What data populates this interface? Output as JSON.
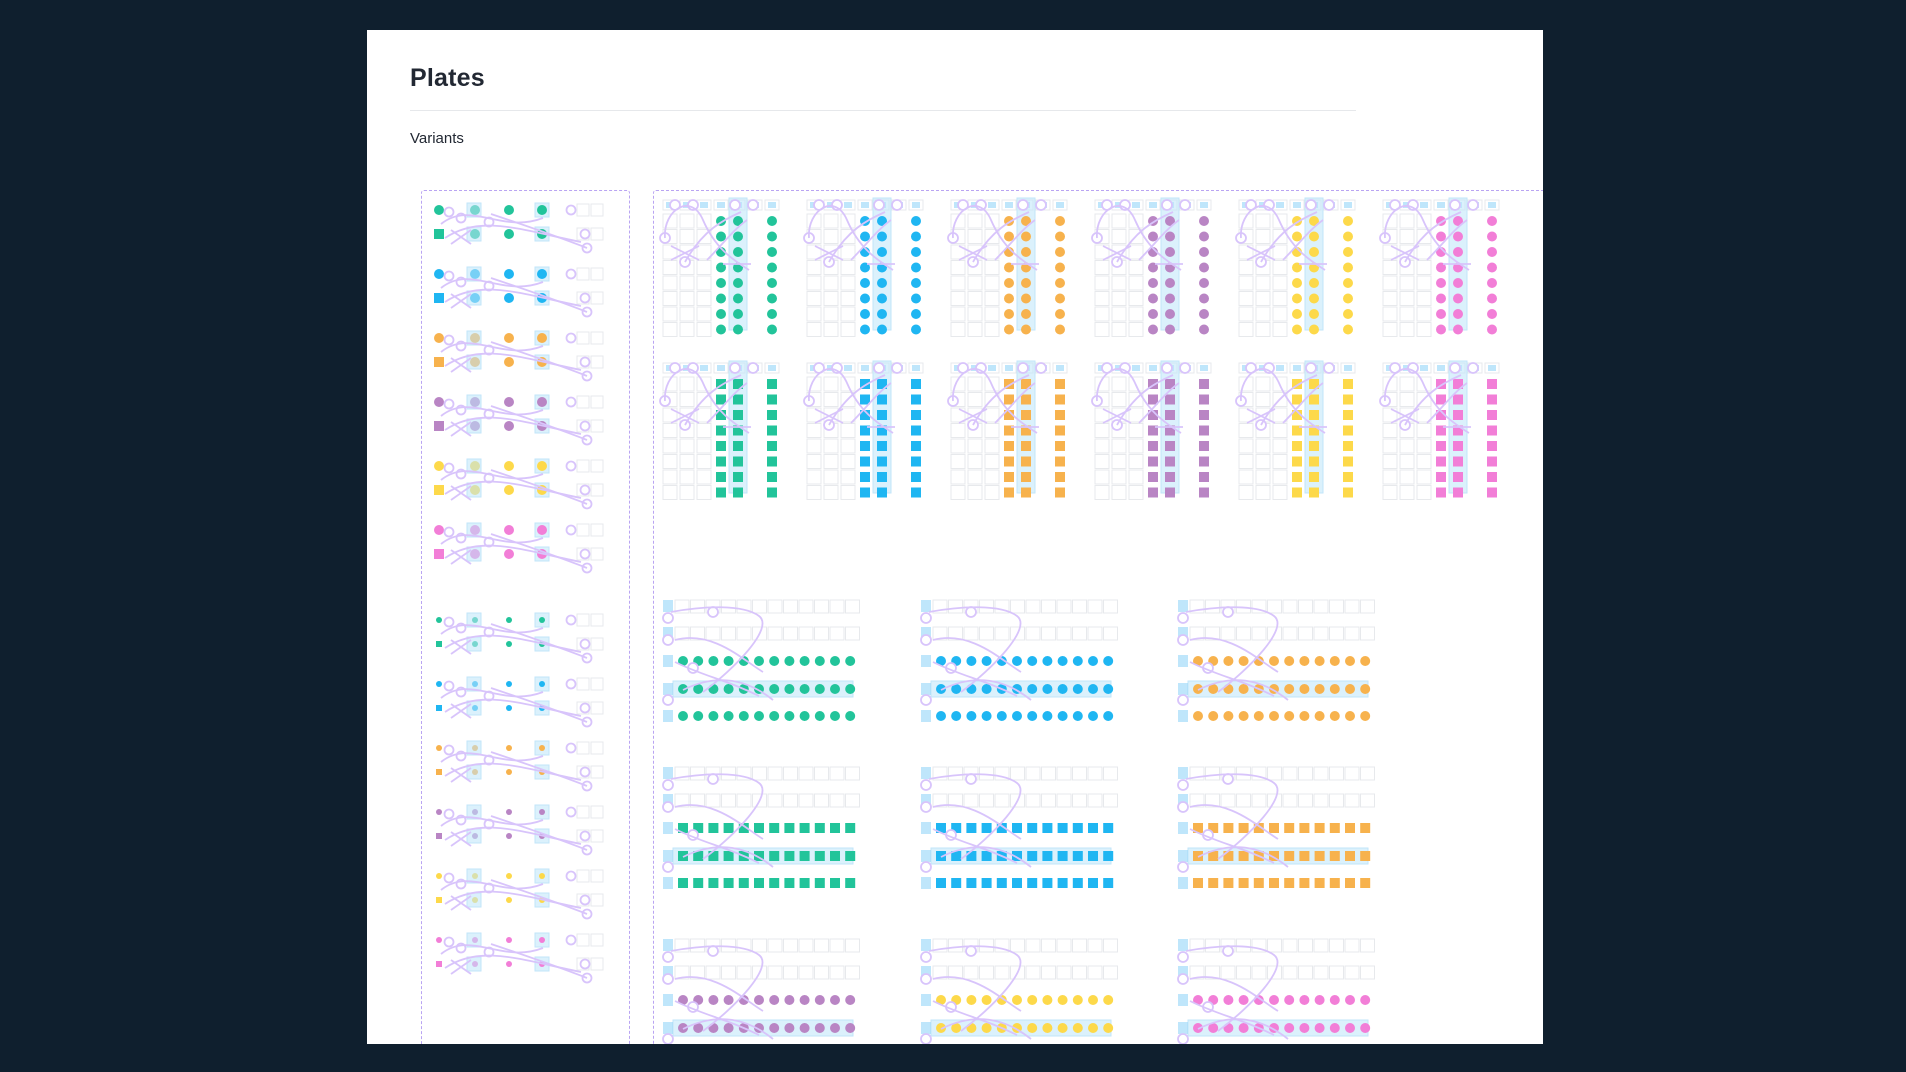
{
  "page": {
    "title": "Plates",
    "section_label": "Variants"
  },
  "colors": {
    "background": "#0f1f2e",
    "canvas": "#ffffff",
    "frame_dash": "#b9a4f2",
    "connector": "#d8c4fb",
    "cell_border": "#e7e9ec",
    "highlight": "#bfe6fb",
    "swatches": [
      "#22c49a",
      "#1fb6f2",
      "#f7b24d",
      "#b985c4",
      "#fdd94a",
      "#f27ed7"
    ]
  },
  "variants": {
    "swatch_names": [
      "green",
      "blue",
      "orange",
      "purple",
      "yellow",
      "pink"
    ],
    "shapes": [
      "circle",
      "square"
    ],
    "icons": [
      "circle-icon",
      "square-icon"
    ]
  }
}
